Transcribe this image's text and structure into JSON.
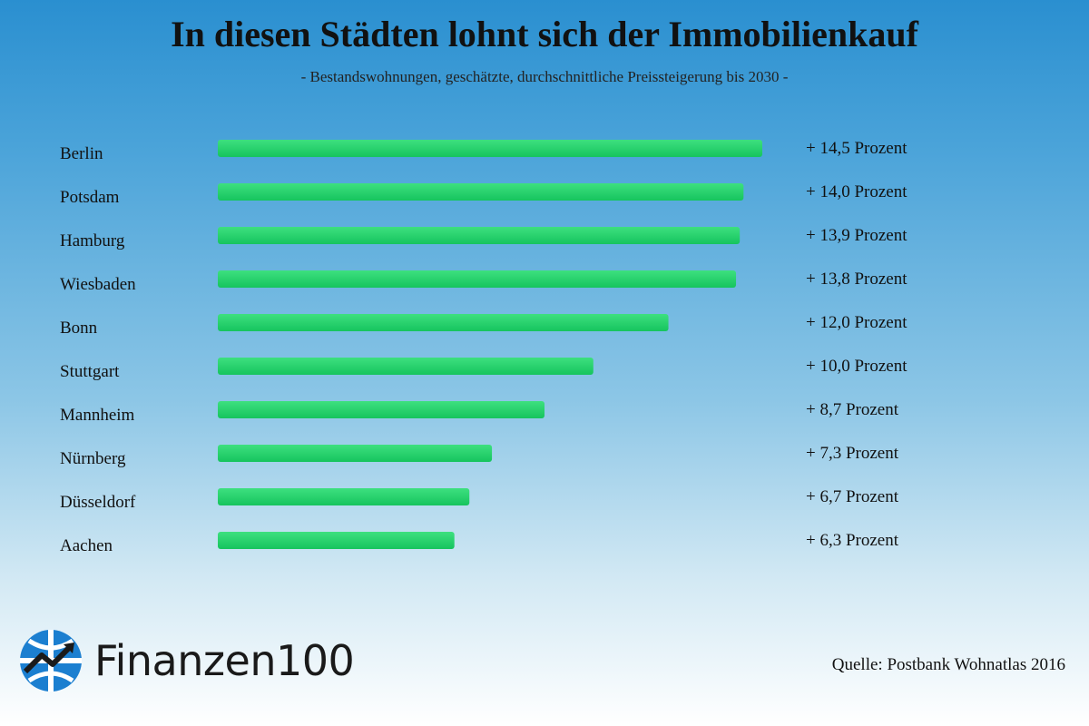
{
  "header": {
    "title": "In diesen Städten lohnt sich der Immobilienkauf",
    "subtitle": "- Bestandswohnungen,  geschätzte, durchschnittliche Preissteigerung bis 2030 -"
  },
  "chart_data": {
    "type": "bar",
    "orientation": "horizontal",
    "categories": [
      "Berlin",
      "Potsdam",
      "Hamburg",
      "Wiesbaden",
      "Bonn",
      "Stuttgart",
      "Mannheim",
      "Nürnberg",
      "Düsseldorf",
      "Aachen"
    ],
    "values": [
      14.5,
      14.0,
      13.9,
      13.8,
      12.0,
      10.0,
      8.7,
      7.3,
      6.7,
      6.3
    ],
    "value_labels": [
      "+ 14,5 Prozent",
      "+ 14,0 Prozent",
      "+ 13,9 Prozent",
      "+ 13,8 Prozent",
      "+ 12,0 Prozent",
      "+ 10,0 Prozent",
      "+ 8,7 Prozent",
      "+ 7,3 Prozent",
      "+ 6,7 Prozent",
      "+ 6,3 Prozent"
    ],
    "bar_color": "#1fcf6a",
    "grid": false,
    "legend": false
  },
  "branding": {
    "logo_name": "Finanzen",
    "logo_number": "100",
    "logo_icon": "globe-trend-icon",
    "logo_color": "#1c7fd0"
  },
  "footer": {
    "source": "Quelle: Postbank Wohnatlas 2016"
  }
}
